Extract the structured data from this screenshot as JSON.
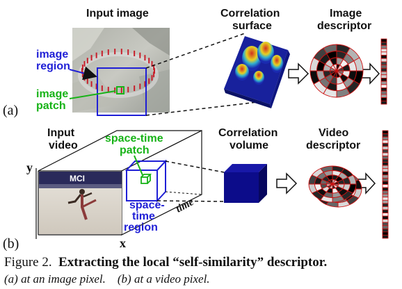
{
  "panel_a": {
    "tag": "(a)",
    "input_image": "Input image",
    "image_region": [
      "image",
      "region"
    ],
    "image_patch": [
      "image",
      "patch"
    ],
    "correlation_surface": [
      "Correlation",
      "surface"
    ],
    "image_descriptor": [
      "Image",
      "descriptor"
    ]
  },
  "panel_b": {
    "tag": "(b)",
    "input_video": [
      "Input",
      "video"
    ],
    "spacetime_patch": [
      "space-time",
      "patch"
    ],
    "spacetime_region": [
      "space-",
      "time",
      "region"
    ],
    "correlation_volume": [
      "Correlation",
      "volume"
    ],
    "video_descriptor": [
      "Video",
      "descriptor"
    ],
    "time_axis": "time",
    "x_axis": "x",
    "y_axis": "y",
    "banner_text": "MCI"
  },
  "caption": {
    "figure_label": "Figure 2.",
    "title": "Extracting the local “self-similarity” descriptor.",
    "subcaption_a": "(a) at an image pixel.",
    "subcaption_b": "(b) at a video pixel."
  },
  "colors": {
    "blue": "#1f1fd6",
    "green": "#17b317",
    "dark_blue": "#0c0c8a",
    "red": "#cc1111"
  },
  "descriptor_a_cells": [
    1,
    0.85,
    0.5,
    0.1,
    0.1,
    0.95,
    0.15,
    0.75,
    0.6,
    0.85,
    0.3,
    0.2,
    0.95,
    0.4,
    0.05,
    0.9,
    0.55,
    0.35,
    1,
    0.9
  ],
  "descriptor_b_cells": [
    1,
    0.85,
    0.5,
    0.1,
    0.85,
    0.2,
    0.75,
    0.15,
    0.6,
    0.85,
    0.9,
    0.3,
    0.2,
    0.95,
    0.4,
    0.6,
    0.95,
    0.05,
    0.9,
    0.55,
    0.4,
    0.1,
    0.35,
    0.85,
    0.2,
    0.9,
    0.05,
    0.95,
    0.15,
    0.7,
    0.6,
    0.85,
    1,
    0.9
  ]
}
